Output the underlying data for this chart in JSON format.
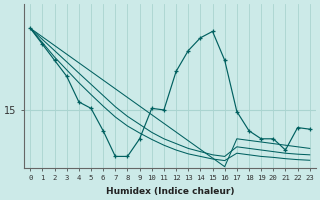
{
  "title": "",
  "xlabel": "Humidex (Indice chaleur)",
  "background_color": "#cceae8",
  "grid_color": "#aad4d0",
  "line_color": "#006060",
  "xlim": [
    -0.5,
    23.5
  ],
  "ylim": [
    13.2,
    18.3
  ],
  "ytick_val": 15,
  "xticks": [
    0,
    1,
    2,
    3,
    4,
    5,
    6,
    7,
    8,
    9,
    10,
    11,
    12,
    13,
    14,
    15,
    16,
    17,
    18,
    19,
    20,
    21,
    22,
    23
  ],
  "smooth_lines": [
    [
      17.55,
      17.28,
      17.01,
      16.74,
      16.47,
      16.2,
      15.93,
      15.66,
      15.39,
      15.12,
      14.85,
      14.58,
      14.31,
      14.04,
      13.77,
      13.5,
      13.23,
      14.1,
      14.05,
      14.0,
      13.95,
      13.9,
      13.85,
      13.8
    ],
    [
      17.55,
      17.2,
      16.85,
      16.5,
      16.15,
      15.8,
      15.45,
      15.1,
      14.8,
      14.55,
      14.3,
      14.1,
      13.95,
      13.8,
      13.7,
      13.6,
      13.55,
      13.85,
      13.8,
      13.75,
      13.7,
      13.65,
      13.62,
      13.6
    ],
    [
      17.55,
      17.1,
      16.65,
      16.25,
      15.85,
      15.48,
      15.12,
      14.78,
      14.5,
      14.28,
      14.08,
      13.9,
      13.75,
      13.63,
      13.55,
      13.47,
      13.42,
      13.65,
      13.6,
      13.55,
      13.52,
      13.48,
      13.45,
      13.43
    ]
  ],
  "zigzag": [
    17.55,
    17.05,
    16.55,
    16.05,
    15.25,
    15.05,
    14.35,
    13.55,
    13.55,
    14.1,
    15.05,
    15.0,
    16.2,
    16.85,
    17.25,
    17.45,
    16.55,
    14.95,
    14.35,
    14.1,
    14.1,
    13.75,
    14.45,
    14.4
  ]
}
